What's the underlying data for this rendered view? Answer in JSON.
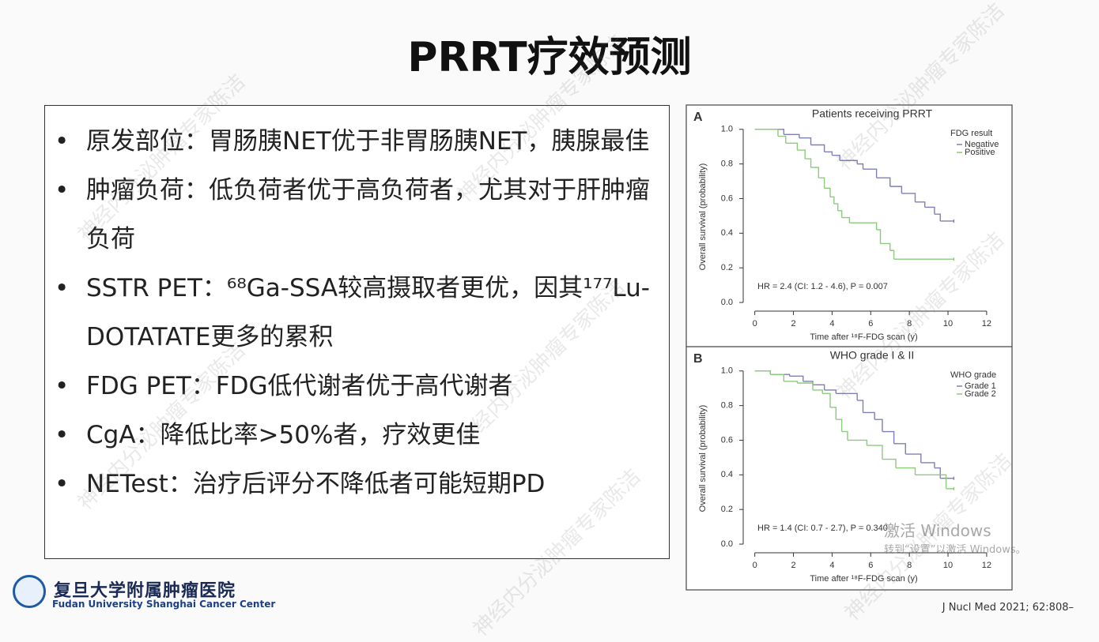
{
  "title": "PRRT疗效预测",
  "bullets": [
    "原发部位：胃肠胰NET优于非胃肠胰NET，胰腺最佳",
    "肿瘤负荷：低负荷者优于高负荷者，尤其对于肝肿瘤负荷",
    "SSTR PET：⁶⁸Ga-SSA较高摄取者更优，因其¹⁷⁷Lu-DOTATATE更多的累积",
    "FDG PET：FDG低代谢者优于高代谢者",
    "CgA：降低比率>50%者，疗效更佳",
    "NETest：治疗后评分不降低者可能短期PD"
  ],
  "chart_data": [
    {
      "type": "step",
      "panel": "A",
      "title": "Patients receiving PRRT",
      "x_label": "Time after ¹⁸F-FDG scan (y)",
      "y_label": "Overall survival (probability)",
      "annotation": "HR = 2.4 (CI: 1.2 - 4.6), P = 0.007",
      "legend_title": "FDG result",
      "xlim": [
        -0.6,
        12.7
      ],
      "ylim": [
        -0.05,
        1.04
      ],
      "xticks": [
        0,
        2,
        4,
        6,
        8,
        10,
        12
      ],
      "yticks": [
        {
          "value": 0,
          "label": "0.0"
        },
        0.2,
        0.4,
        0.6,
        0.8,
        {
          "value": 1,
          "label": "1.0"
        }
      ],
      "series": [
        {
          "name": "Negative",
          "color": "#7f7fb8",
          "x": [
            0,
            1.5,
            2.3,
            2.9,
            3.6,
            4.0,
            4.4,
            5.3,
            5.6,
            6.3,
            7.0,
            7.6,
            8.3,
            8.8,
            9.3,
            9.6,
            10.3
          ],
          "values": [
            1.0,
            0.97,
            0.95,
            0.91,
            0.87,
            0.85,
            0.82,
            0.8,
            0.77,
            0.72,
            0.67,
            0.63,
            0.58,
            0.55,
            0.51,
            0.47,
            0.47
          ]
        },
        {
          "name": "Positive",
          "color": "#8ccb7c",
          "x": [
            0,
            1.2,
            1.6,
            2.2,
            2.6,
            2.9,
            3.3,
            3.6,
            3.9,
            4.1,
            4.3,
            4.5,
            4.9,
            6.3,
            6.5,
            7.0,
            7.2,
            10.3
          ],
          "values": [
            1.0,
            0.96,
            0.92,
            0.88,
            0.83,
            0.78,
            0.72,
            0.66,
            0.61,
            0.57,
            0.53,
            0.49,
            0.46,
            0.42,
            0.34,
            0.3,
            0.25,
            0.25
          ]
        }
      ]
    },
    {
      "type": "step",
      "panel": "B",
      "title": "WHO grade I & II",
      "x_label": "Time after ¹⁸F-FDG scan (y)",
      "y_label": "Overall survival (probability)",
      "annotation": "HR = 1.4 (CI: 0.7 - 2.7), P = 0.340",
      "legend_title": "WHO grade",
      "xlim": [
        -0.6,
        12.7
      ],
      "ylim": [
        -0.05,
        1.04
      ],
      "xticks": [
        0,
        2,
        4,
        6,
        8,
        10,
        12
      ],
      "yticks": [
        {
          "value": 0,
          "label": "0.0"
        },
        0.2,
        0.4,
        0.6,
        0.8,
        {
          "value": 1,
          "label": "1.0"
        }
      ],
      "series": [
        {
          "name": "Grade 1",
          "color": "#7f7fb8",
          "x": [
            0,
            0.8,
            1.8,
            2.5,
            3.0,
            3.6,
            4.2,
            5.3,
            5.6,
            6.2,
            6.6,
            7.2,
            7.8,
            8.6,
            9.3,
            9.6,
            10.3
          ],
          "values": [
            1.0,
            0.98,
            0.97,
            0.94,
            0.92,
            0.89,
            0.87,
            0.83,
            0.76,
            0.72,
            0.65,
            0.58,
            0.52,
            0.47,
            0.44,
            0.38,
            0.38
          ]
        },
        {
          "name": "Grade 2",
          "color": "#8ccb7c",
          "x": [
            0,
            0.8,
            1.5,
            2.2,
            3.0,
            3.5,
            3.9,
            4.2,
            4.5,
            4.8,
            5.8,
            6.6,
            7.3,
            8.3,
            9.9,
            10.3
          ],
          "values": [
            1.0,
            0.98,
            0.94,
            0.93,
            0.89,
            0.87,
            0.79,
            0.72,
            0.65,
            0.6,
            0.57,
            0.49,
            0.44,
            0.4,
            0.32,
            0.32
          ]
        }
      ]
    }
  ],
  "logo": {
    "cn": "复旦大学附属肿瘤医院",
    "en": "Fudan University Shanghai Cancer Center"
  },
  "citation": "J Nucl Med 2021; 62:808–",
  "watermark": "神经内分泌肿瘤专家陈洁",
  "activation": {
    "title": "激活 Windows",
    "hint": "转到“设置”以激活 Windows。"
  }
}
